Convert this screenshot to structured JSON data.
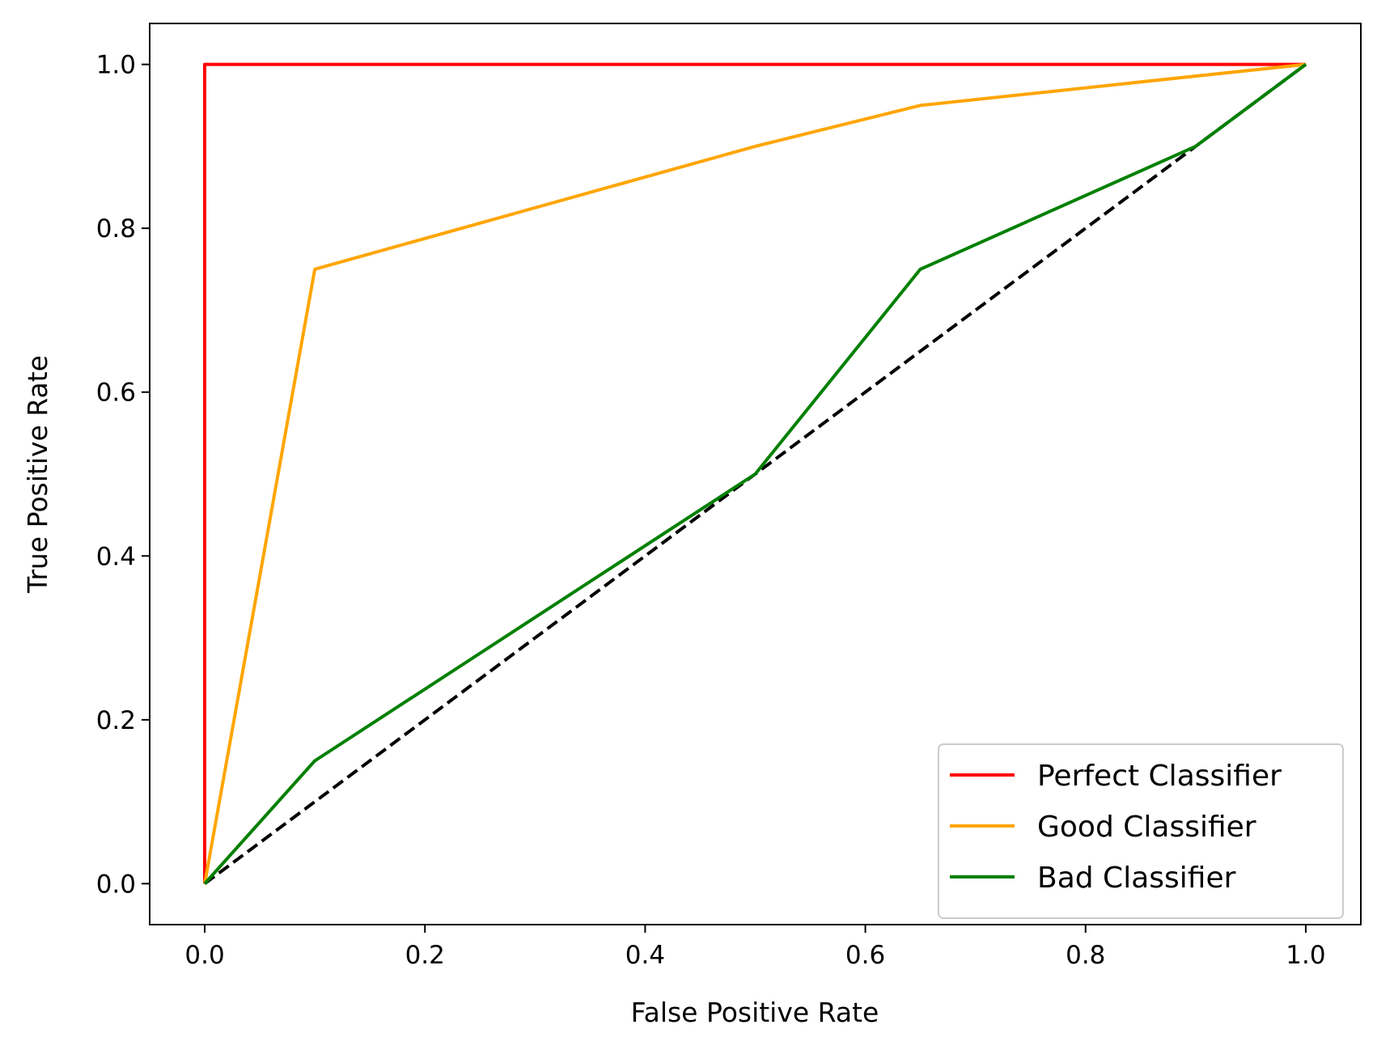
{
  "chart_data": {
    "type": "line",
    "title": "",
    "xlabel": "False Positive Rate",
    "ylabel": "True Positive Rate",
    "xlim": [
      -0.05,
      1.05
    ],
    "ylim": [
      -0.05,
      1.05
    ],
    "x_ticks": [
      "0.0",
      "0.2",
      "0.4",
      "0.6",
      "0.8",
      "1.0"
    ],
    "y_ticks": [
      "0.0",
      "0.2",
      "0.4",
      "0.6",
      "0.8",
      "1.0"
    ],
    "grid": false,
    "legend_position": "lower-right",
    "series": [
      {
        "name": "Perfect Classifier",
        "color": "#ff0000",
        "style": "solid",
        "x": [
          0.0,
          0.0,
          1.0
        ],
        "y": [
          0.0,
          1.0,
          1.0
        ]
      },
      {
        "name": "Good Classifier",
        "color": "#ffa500",
        "style": "solid",
        "x": [
          0.0,
          0.1,
          0.5,
          0.65,
          1.0
        ],
        "y": [
          0.0,
          0.75,
          0.9,
          0.95,
          1.0
        ]
      },
      {
        "name": "Bad Classifier",
        "color": "#008000",
        "style": "solid",
        "x": [
          0.0,
          0.1,
          0.5,
          0.65,
          0.9,
          1.0
        ],
        "y": [
          0.0,
          0.15,
          0.5,
          0.75,
          0.9,
          1.0
        ]
      },
      {
        "name": "",
        "color": "#000000",
        "style": "dashed",
        "x": [
          0.0,
          1.0
        ],
        "y": [
          0.0,
          1.0
        ]
      }
    ]
  }
}
